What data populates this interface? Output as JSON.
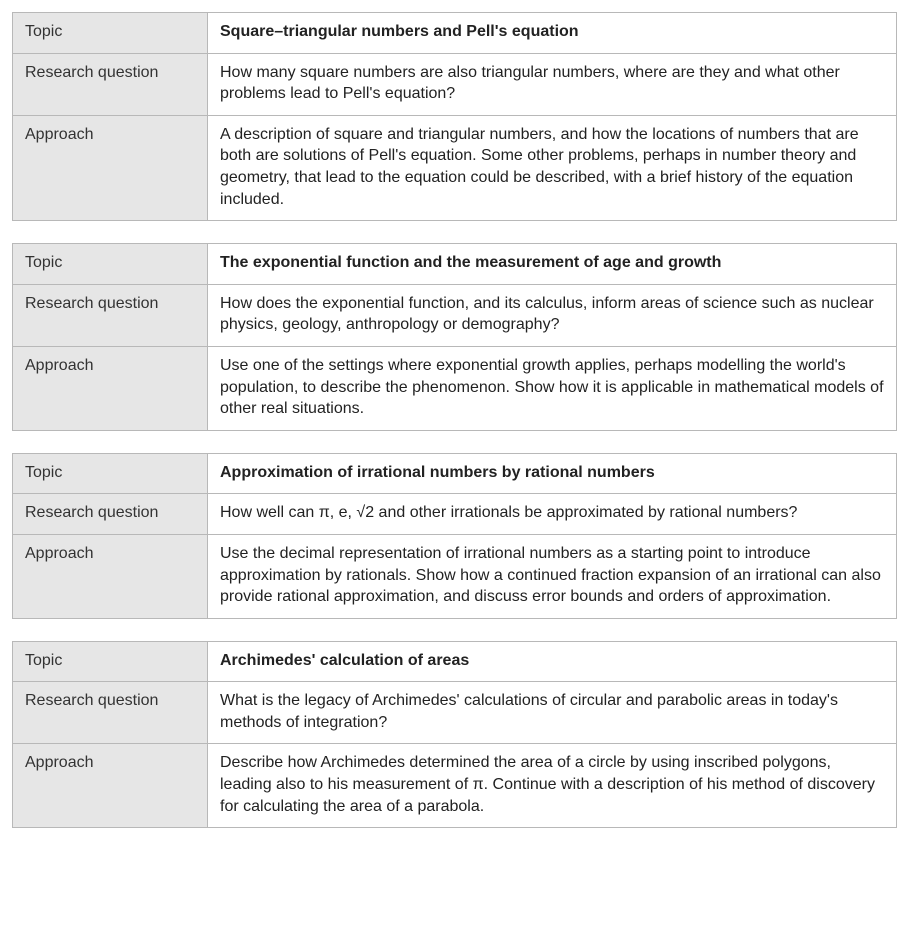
{
  "labels": {
    "topic": "Topic",
    "research_question": "Research question",
    "approach": "Approach"
  },
  "tables": [
    {
      "topic": "Square–triangular numbers and Pell's equation",
      "research_question": "How many square numbers are also triangular numbers, where are they and what other problems lead to Pell's equation?",
      "approach": "A description of square and triangular numbers, and how the locations of numbers that are both are solutions of Pell's equation. Some other problems, perhaps in number theory and geometry, that lead to the equation could be described, with a brief history of the equation included."
    },
    {
      "topic": "The exponential function and the measurement of age and growth",
      "research_question": "How does the exponential function, and its calculus, inform areas of science such as nuclear physics, geology, anthropology or demography?",
      "approach": "Use one of the settings where exponential growth applies, perhaps modelling the world's population, to describe the phenomenon. Show how it is applicable in mathematical models of other real situations."
    },
    {
      "topic": "Approximation of irrational numbers by rational numbers",
      "research_question": "How well can π, e, √2 and other irrationals be approximated by rational numbers?",
      "approach": "Use the decimal representation of irrational numbers as a starting point to introduce approximation by rationals. Show how a continued fraction expansion of an irrational can also provide rational approximation, and discuss error bounds and orders of approximation."
    },
    {
      "topic": "Archimedes' calculation of areas",
      "research_question": "What is the legacy of Archimedes' calculations of circular and parabolic areas in today's methods of integration?",
      "approach": "Describe how Archimedes determined the area of a circle by using inscribed polygons, leading also to his measurement of π. Continue with a description of his method of discovery for calculating the area of a parabola."
    }
  ]
}
